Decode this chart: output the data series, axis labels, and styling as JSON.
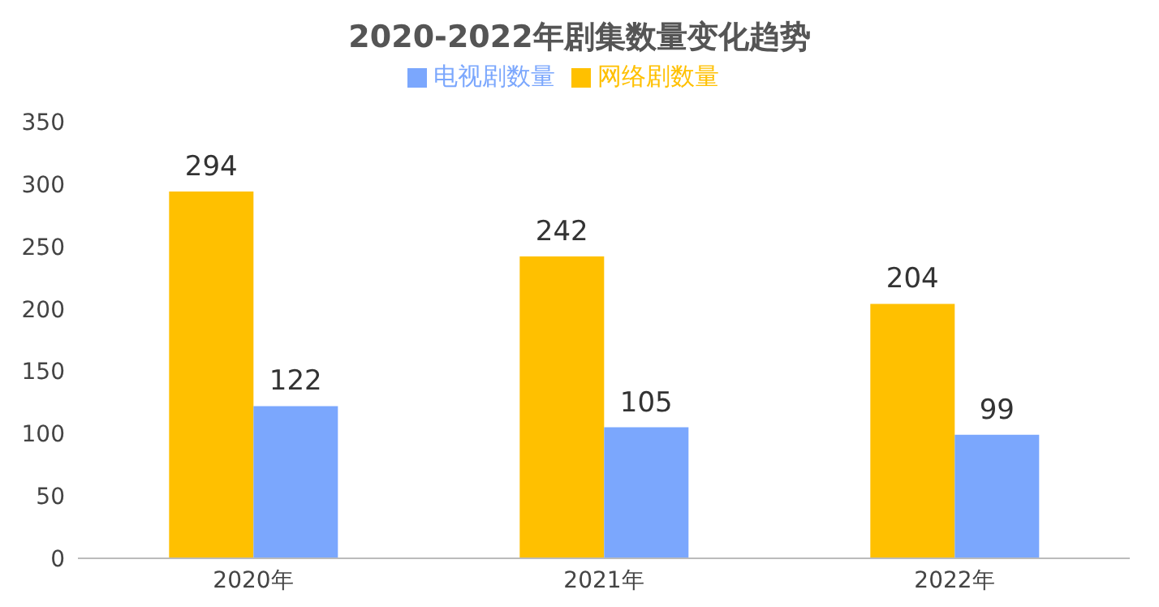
{
  "chart_data": {
    "type": "bar",
    "title": "2020-2022年剧集数量变化趋势",
    "categories": [
      "2020年",
      "2021年",
      "2022年"
    ],
    "series": [
      {
        "name": "网络剧数量",
        "color": "#ffc000",
        "values": [
          294,
          242,
          204
        ]
      },
      {
        "name": "电视剧数量",
        "color": "#7ba7fd",
        "values": [
          122,
          105,
          99
        ]
      }
    ],
    "ylim": [
      0,
      350
    ],
    "yticks": [
      0,
      50,
      100,
      150,
      200,
      250,
      300,
      350
    ],
    "data_labels": true,
    "legend": "top"
  }
}
